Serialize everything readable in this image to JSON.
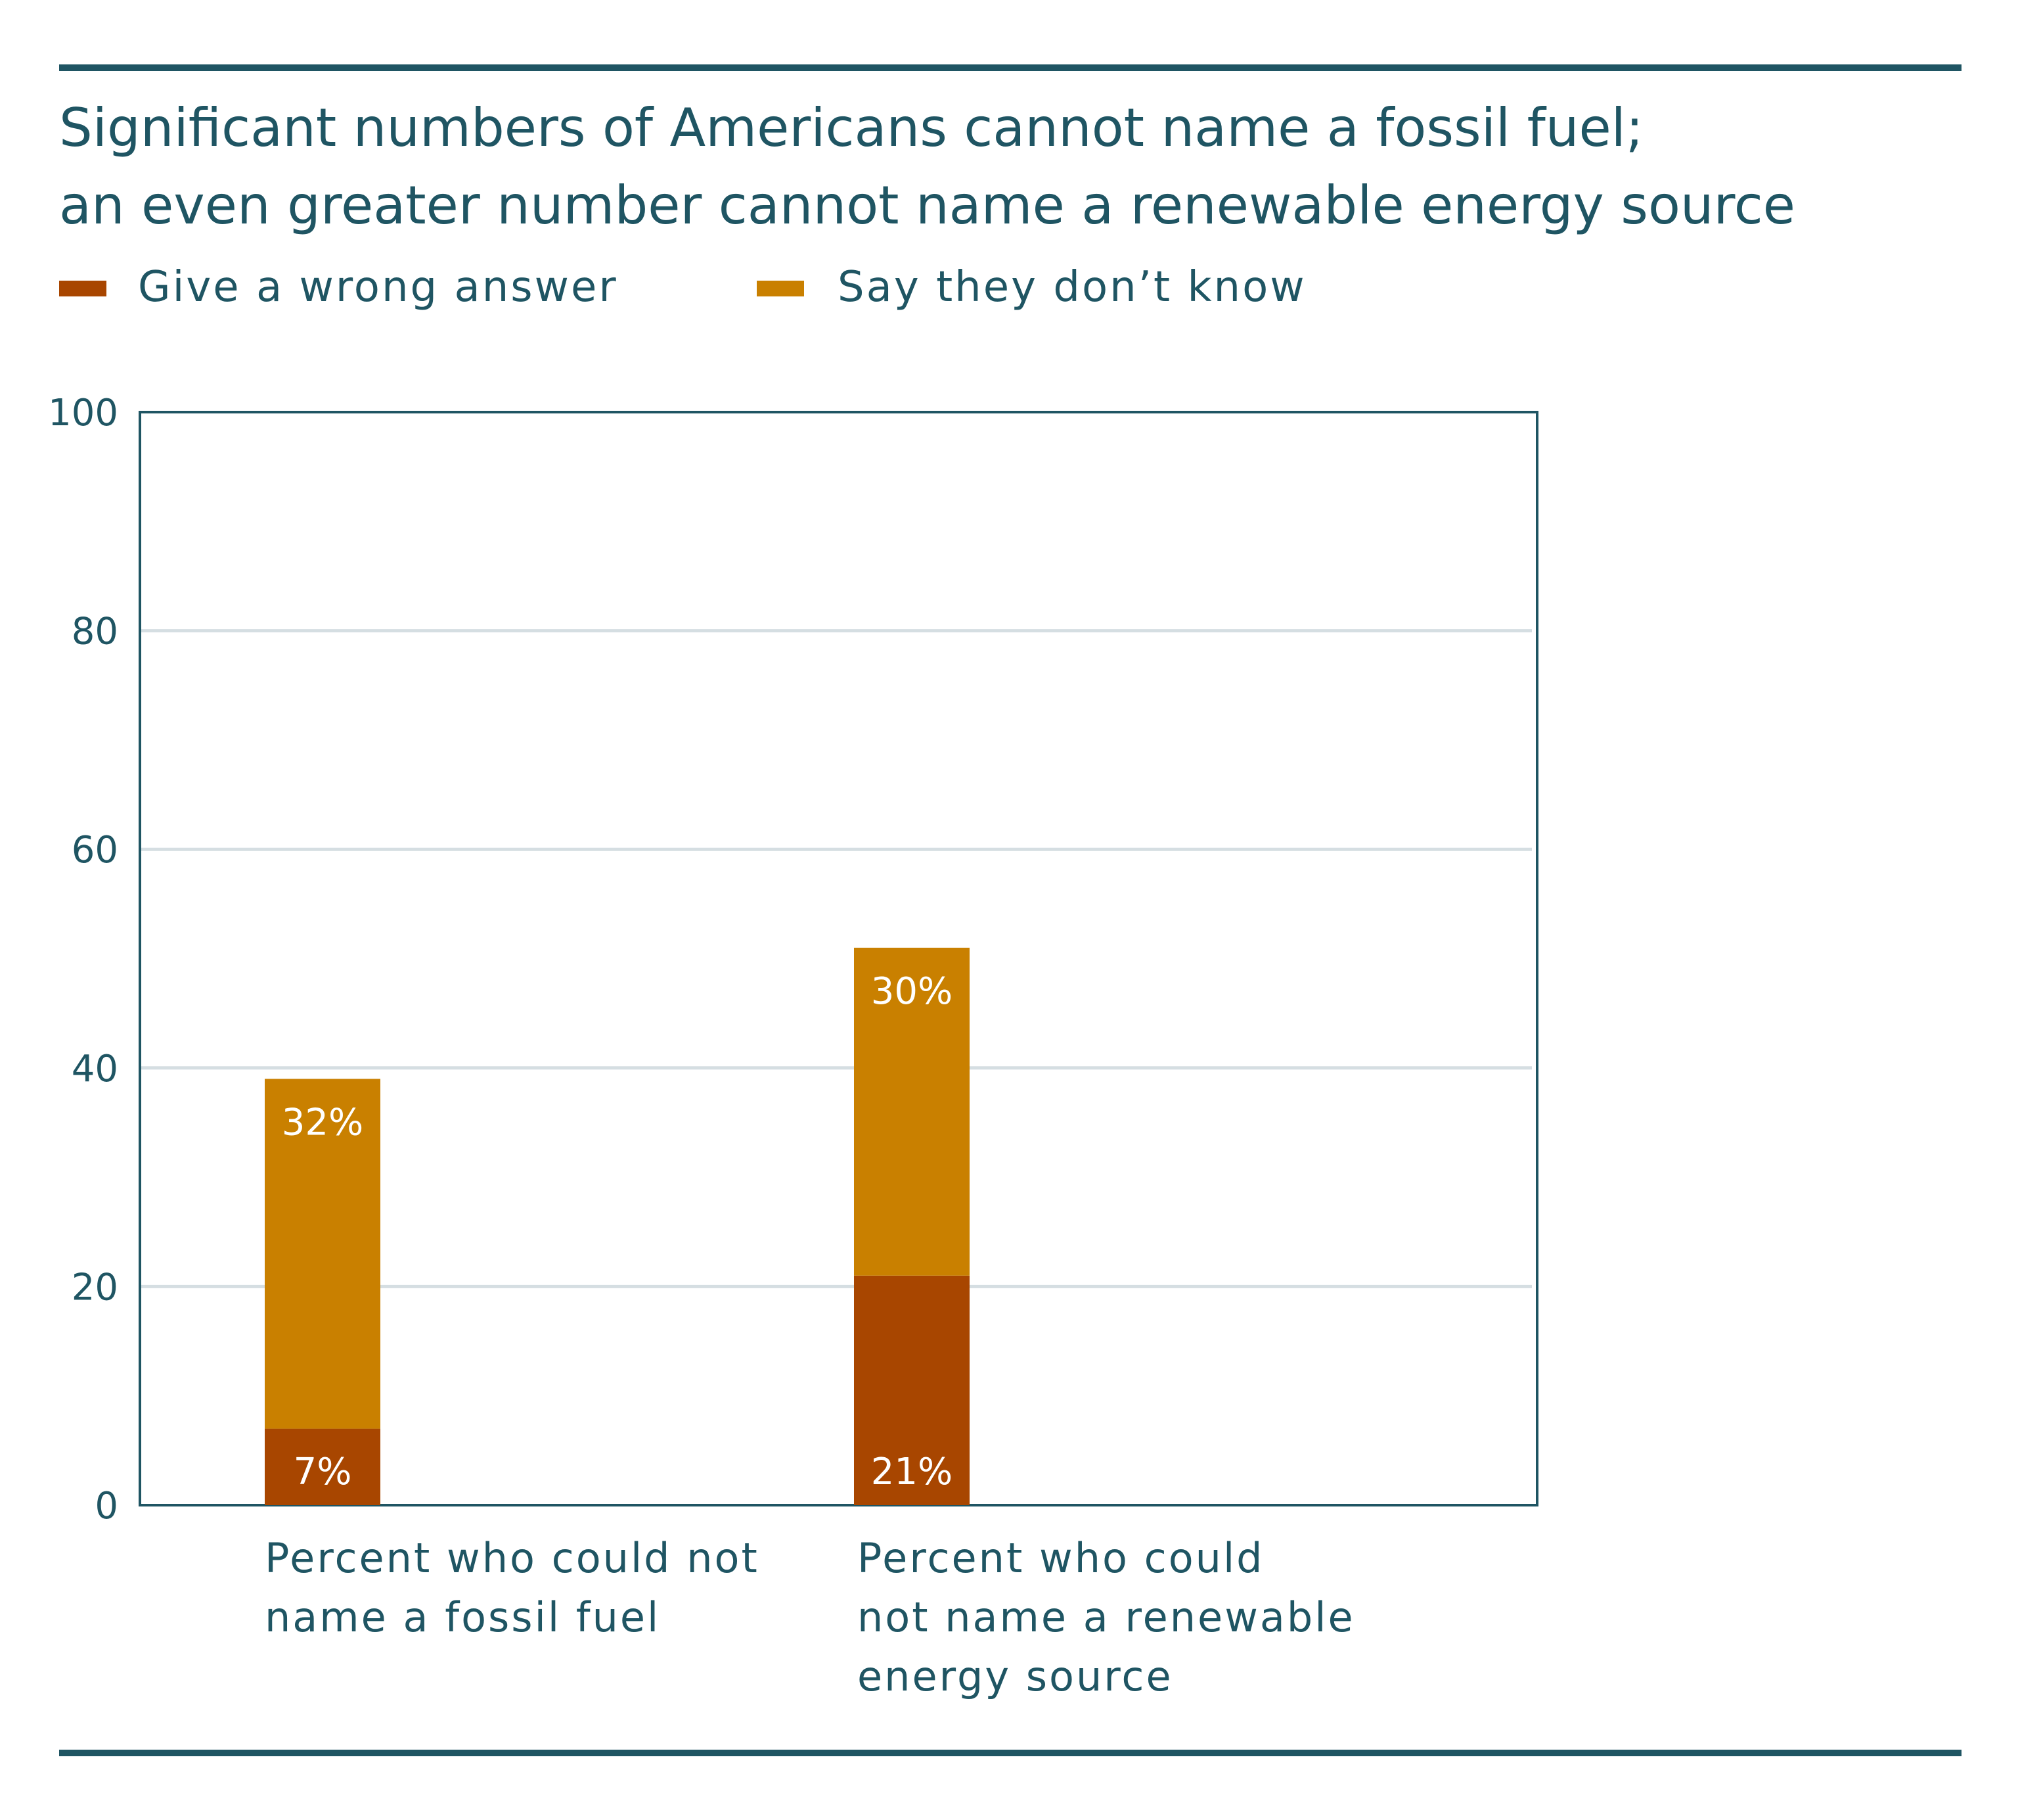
{
  "colors": {
    "accent": "#1f5563",
    "gridline": "#d5dee2",
    "series_wrong": "#a84600",
    "series_dont_know": "#c98000"
  },
  "chart_data": {
    "type": "bar",
    "stacked": true,
    "title": "Significant numbers of Americans cannot name a fossil fuel; an even greater number cannot name a renewable energy source",
    "title_lines": [
      "Significant numbers of Americans cannot name a fossil fuel;",
      "an even greater number cannot name a renewable energy source"
    ],
    "xlabel": "",
    "ylabel": "",
    "ylim": [
      0,
      100
    ],
    "yticks": [
      0,
      20,
      40,
      60,
      80,
      100
    ],
    "grid": true,
    "legend_position": "top-left",
    "categories": [
      "Percent who could not name a fossil fuel",
      "Percent who could not name a renewable energy source"
    ],
    "category_lines": [
      [
        "Percent who could not",
        "name a fossil fuel"
      ],
      [
        "Percent who could",
        "not name a renewable",
        "energy source"
      ]
    ],
    "series": [
      {
        "name": "Give a wrong answer",
        "values": [
          7,
          21
        ],
        "labels": [
          "7%",
          "21%"
        ],
        "color": "#a84600"
      },
      {
        "name": "Say they don’t know",
        "values": [
          32,
          30
        ],
        "labels": [
          "32%",
          "30%"
        ],
        "color": "#c98000"
      }
    ]
  }
}
